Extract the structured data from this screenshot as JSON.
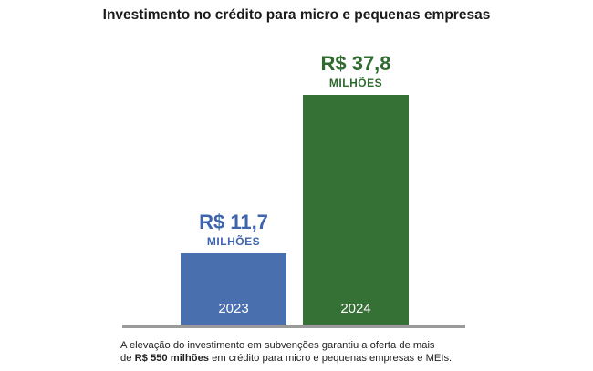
{
  "title": "Investimento no crédito para micro e pequenas empresas",
  "chart_data": {
    "type": "bar",
    "title": "Investimento no crédito para micro e pequenas empresas",
    "categories": [
      "2023",
      "2024"
    ],
    "values": [
      11.7,
      37.8
    ],
    "value_labels": [
      "R$ 11,7",
      "R$ 37,8"
    ],
    "unit_label": "MILHÕES",
    "xlabel": "",
    "ylabel": "",
    "ylim": [
      0,
      37.8
    ],
    "grid": false,
    "legend": "none",
    "colors": [
      "#4a6faf",
      "#357035"
    ],
    "label_colors": [
      "#3e64ad",
      "#2f6a2f"
    ],
    "baseline_color": "#9a9a9a"
  },
  "footnote": {
    "line1": "A elevação do investimento em subvenções garantiu a oferta de mais",
    "line2_prefix": "de ",
    "line2_bold": "R$ 550 milhões",
    "line2_suffix": " em crédito para micro e pequenas empresas e MEIs."
  }
}
